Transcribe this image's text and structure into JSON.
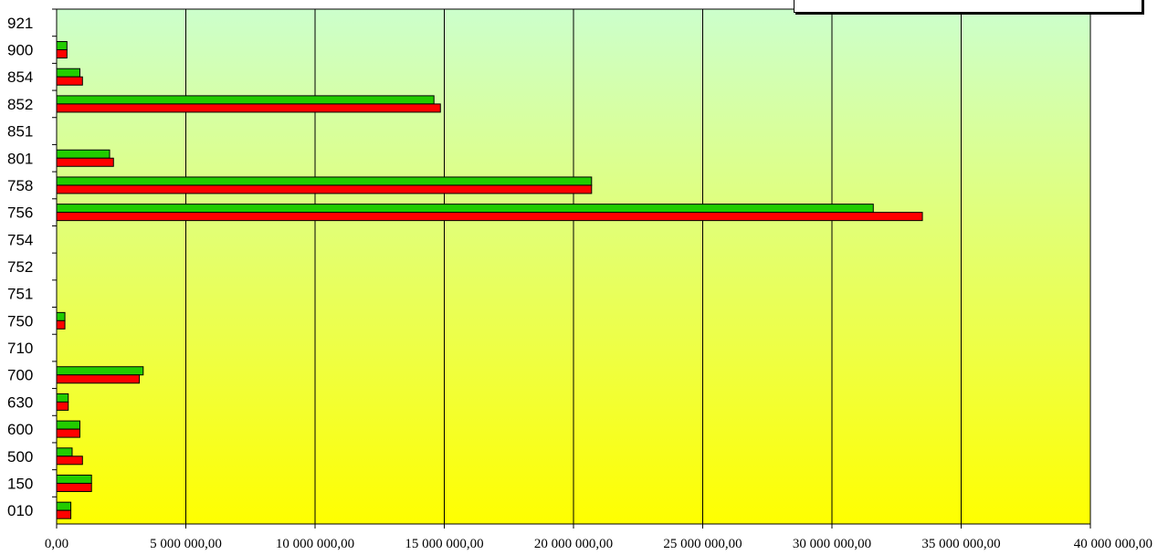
{
  "chart_data": {
    "type": "bar",
    "orientation": "horizontal",
    "title": "",
    "xlabel": "",
    "ylabel": "",
    "xlim": [
      0,
      40000000
    ],
    "x_ticks": [
      0,
      5000000,
      10000000,
      15000000,
      20000000,
      25000000,
      30000000,
      35000000,
      40000000
    ],
    "x_tick_labels": [
      "0,00",
      "5 000 000,00",
      "10 000 000,00",
      "15 000 000,00",
      "20 000 000,00",
      "25 000 000,00",
      "30 000 000,00",
      "35 000 000,00",
      "40 000 000,00"
    ],
    "categories": [
      "921",
      "900",
      "854",
      "852",
      "851",
      "801",
      "758",
      "756",
      "754",
      "752",
      "751",
      "750",
      "710",
      "700",
      "630",
      "600",
      "500",
      "150",
      "010"
    ],
    "series": [
      {
        "color": "#22cc00",
        "values": [
          0,
          400000,
          900000,
          14600000,
          0,
          2050000,
          20700000,
          31600000,
          0,
          0,
          0,
          320000,
          0,
          3350000,
          450000,
          900000,
          600000,
          1350000,
          550000
        ]
      },
      {
        "color": "#ff0000",
        "values": [
          0,
          400000,
          1000000,
          14850000,
          0,
          2200000,
          20700000,
          33500000,
          0,
          0,
          0,
          320000,
          0,
          3200000,
          450000,
          900000,
          1000000,
          1350000,
          550000
        ]
      }
    ],
    "grid": "vertical",
    "legend": "top-right",
    "background": [
      "#ccffcc",
      "#ffff00"
    ]
  }
}
